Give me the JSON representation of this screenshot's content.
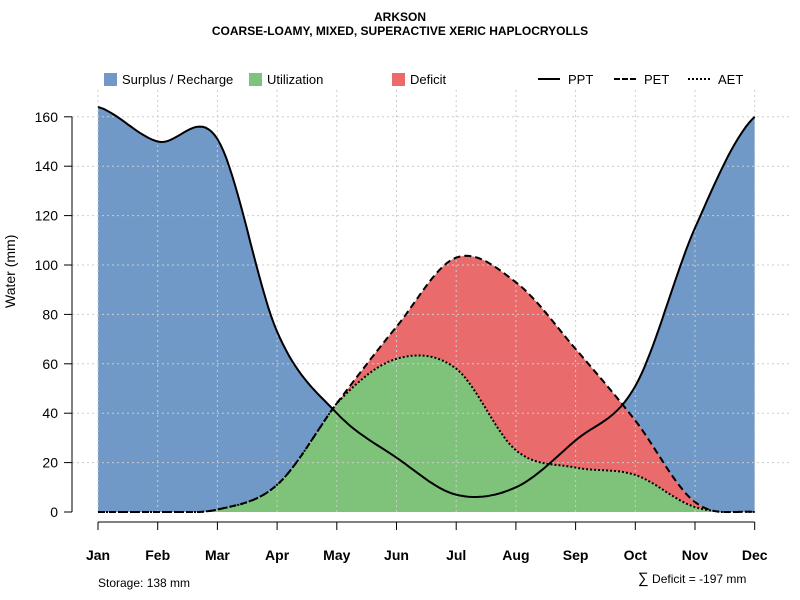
{
  "chart_data": {
    "type": "area",
    "title": "ARKSON",
    "subtitle": "COARSE-LOAMY, MIXED, SUPERACTIVE XERIC HAPLOCRYOLLS",
    "xlabel": "",
    "ylabel": "Water (mm)",
    "ylim": [
      0,
      170
    ],
    "yticks": [
      0,
      20,
      40,
      60,
      80,
      100,
      120,
      140,
      160
    ],
    "grid": true,
    "legend_position": "top",
    "categories": [
      "Jan",
      "Feb",
      "Mar",
      "Apr",
      "May",
      "Jun",
      "Jul",
      "Aug",
      "Sep",
      "Oct",
      "Nov",
      "Dec"
    ],
    "series": [
      {
        "name": "PPT",
        "style": "solid",
        "values": [
          164,
          150,
          151,
          73,
          40,
          22,
          7,
          10,
          29,
          51,
          115,
          160
        ]
      },
      {
        "name": "PET",
        "style": "dashed",
        "values": [
          0,
          0,
          1,
          11,
          44,
          75,
          103,
          93,
          66,
          37,
          4,
          0
        ]
      },
      {
        "name": "AET",
        "style": "dotted",
        "values": [
          0,
          0,
          1,
          11,
          44,
          62,
          58,
          25,
          18,
          15,
          2,
          0
        ]
      }
    ],
    "areas": [
      {
        "name": "Surplus / Recharge",
        "color": "#7199c8"
      },
      {
        "name": "Utilization",
        "color": "#7fc37b"
      },
      {
        "name": "Deficit",
        "color": "#ea6b6c"
      }
    ],
    "annotations": {
      "storage": "Storage: 138 mm",
      "deficit_symbol": "∑",
      "deficit": "Deficit = -197 mm"
    }
  }
}
